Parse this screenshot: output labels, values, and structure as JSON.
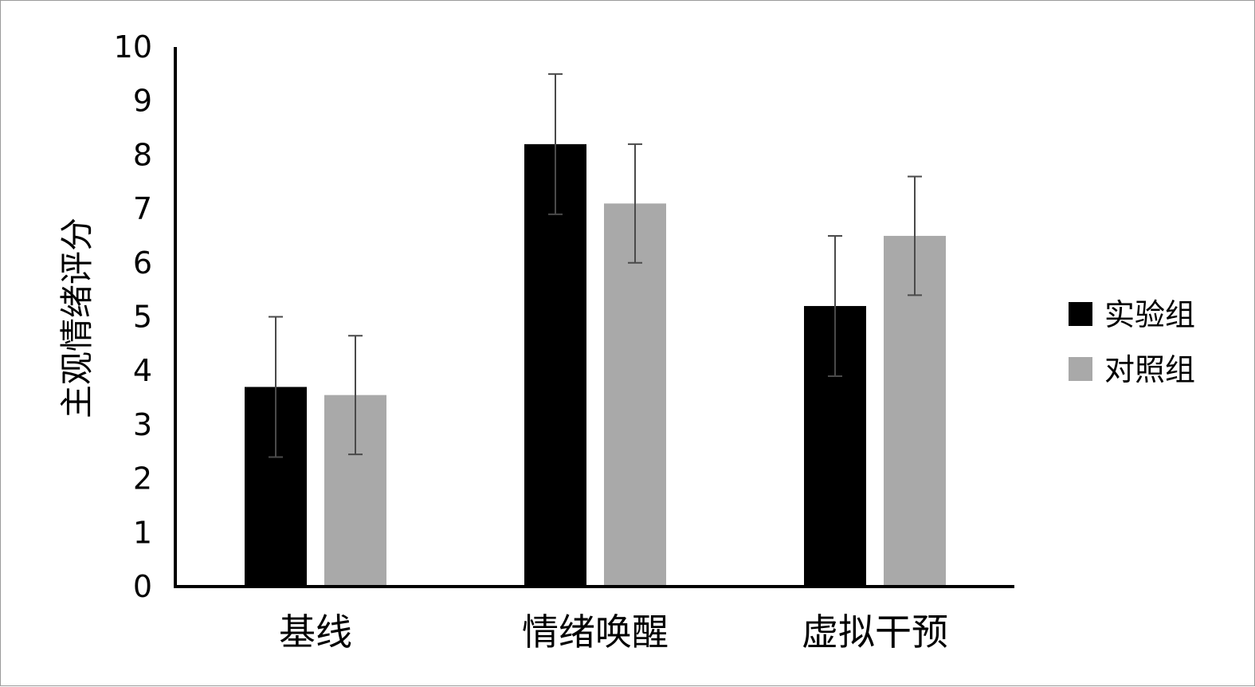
{
  "chart_data": {
    "type": "bar",
    "title": "",
    "xlabel": "",
    "ylabel": "主观情绪评分",
    "ylim": [
      0,
      10
    ],
    "yticks": [
      0,
      1,
      2,
      3,
      4,
      5,
      6,
      7,
      8,
      9,
      10
    ],
    "categories": [
      "基线",
      "情绪唤醒",
      "虚拟干预"
    ],
    "series": [
      {
        "name": "实验组",
        "color": "#000000",
        "values": [
          3.7,
          8.2,
          5.2
        ],
        "error": [
          1.3,
          1.3,
          1.3
        ]
      },
      {
        "name": "对照组",
        "color": "#a9a9a9",
        "values": [
          3.55,
          7.1,
          6.5
        ],
        "error": [
          1.1,
          1.1,
          1.1
        ]
      }
    ],
    "grid": false,
    "legend_position": "right",
    "error_bars": true
  }
}
